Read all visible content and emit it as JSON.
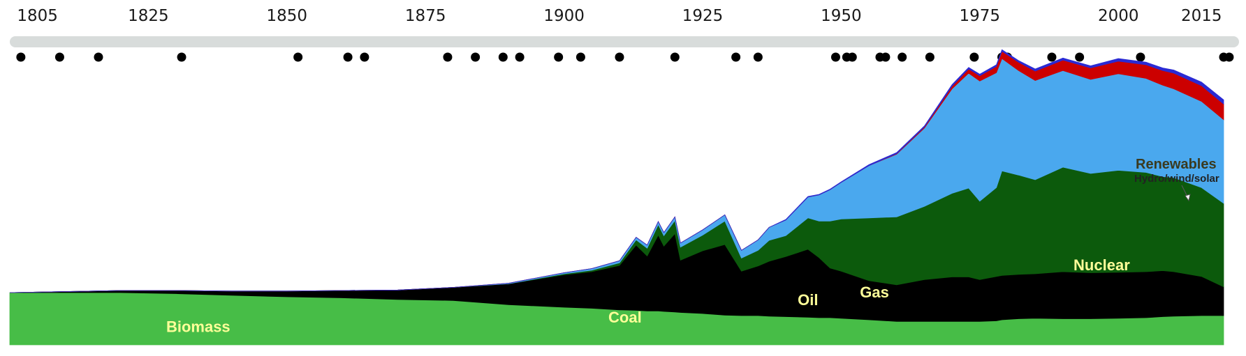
{
  "chart_data": {
    "type": "area",
    "stacked": true,
    "title": "",
    "xlabel": "",
    "ylabel": "",
    "xlim": [
      1800,
      2019
    ],
    "x_ticks": [
      1805,
      1825,
      1850,
      1875,
      1900,
      1925,
      1950,
      1975,
      2000,
      2015
    ],
    "grid": false,
    "legend": "inline",
    "timeline_events": [
      1802,
      1809,
      1816,
      1831,
      1852,
      1861,
      1864,
      1879,
      1884,
      1889,
      1892,
      1899,
      1903,
      1910,
      1920,
      1931,
      1935,
      1949,
      1951,
      1952,
      1957,
      1958,
      1961,
      1966,
      1974,
      1979,
      1980,
      1988,
      1993,
      2004,
      2019,
      2020
    ],
    "x": [
      1800,
      1810,
      1820,
      1830,
      1840,
      1850,
      1860,
      1870,
      1880,
      1890,
      1900,
      1905,
      1910,
      1913,
      1915,
      1917,
      1918,
      1920,
      1921,
      1925,
      1929,
      1932,
      1935,
      1937,
      1940,
      1944,
      1946,
      1948,
      1950,
      1955,
      1960,
      1965,
      1970,
      1973,
      1975,
      1978,
      1979,
      1982,
      1985,
      1990,
      1995,
      2000,
      2005,
      2008,
      2010,
      2015,
      2019
    ],
    "series": [
      {
        "name": "Biomass",
        "color": "#47bd47",
        "label_color": "#ffff99",
        "label_at": [
          1834,
          0.49
        ],
        "values": [
          100,
          100,
          100,
          98,
          95,
          92,
          90,
          87,
          85,
          77,
          72,
          70,
          67,
          66,
          65,
          65,
          64,
          63,
          62,
          60,
          57,
          56,
          56,
          55,
          54,
          53,
          52,
          52,
          51,
          48,
          45,
          45,
          45,
          45,
          45,
          46,
          48,
          50,
          51,
          50,
          50,
          51,
          52,
          54,
          55,
          56,
          56
        ]
      },
      {
        "name": "Coal",
        "color": "#000000",
        "label_color": "#ffff99",
        "label_at": [
          1911,
          0.86
        ],
        "values": [
          0,
          2,
          4,
          6,
          8,
          11,
          14,
          18,
          25,
          40,
          62,
          70,
          85,
          125,
          105,
          145,
          125,
          150,
          100,
          120,
          135,
          85,
          95,
          105,
          115,
          130,
          115,
          95,
          90,
          75,
          70,
          80,
          85,
          85,
          80,
          85,
          85,
          85,
          85,
          90,
          88,
          88,
          88,
          88,
          85,
          75,
          55
        ]
      },
      {
        "name": "Oil",
        "color": "#0c5a0c",
        "label_color": "#ffff99",
        "label_at": [
          1944,
          1.52
        ],
        "values": [
          0,
          0,
          0,
          0,
          0,
          0,
          0,
          0,
          0,
          0,
          2,
          3,
          5,
          10,
          15,
          20,
          20,
          25,
          25,
          30,
          45,
          25,
          30,
          40,
          40,
          60,
          70,
          90,
          100,
          120,
          130,
          140,
          160,
          170,
          150,
          170,
          200,
          190,
          180,
          200,
          190,
          195,
          190,
          180,
          180,
          170,
          160
        ]
      },
      {
        "name": "Gas",
        "color": "#4aa8ee",
        "label_color": "#ffff99",
        "label_at": [
          1956,
          1.82
        ],
        "values": [
          0,
          0,
          0,
          0,
          0,
          0,
          0,
          0,
          0,
          1,
          2,
          3,
          4,
          5,
          6,
          6,
          6,
          7,
          8,
          10,
          12,
          15,
          20,
          25,
          30,
          40,
          50,
          60,
          70,
          100,
          120,
          150,
          200,
          220,
          230,
          220,
          215,
          200,
          190,
          185,
          180,
          185,
          180,
          175,
          170,
          165,
          160
        ]
      },
      {
        "name": "Nuclear",
        "color": "#cc0000",
        "label_color": "#ffff99",
        "label_at": [
          1997,
          2.85
        ],
        "values": [
          0,
          0,
          0,
          0,
          0,
          0,
          0,
          0,
          0,
          0,
          0,
          0,
          0,
          0,
          0,
          0,
          0,
          0,
          0,
          0,
          0,
          0,
          0,
          0,
          0,
          0,
          0,
          0,
          0,
          0,
          1,
          2,
          5,
          8,
          10,
          12,
          14,
          16,
          18,
          20,
          22,
          24,
          26,
          28,
          30,
          30,
          30
        ]
      },
      {
        "name": "Renewables",
        "color": "#2a2ad4",
        "label_color": "#3a3a1f",
        "label_at": [
          2009,
          3.2
        ],
        "values": [
          0,
          0,
          0,
          0,
          0,
          0,
          0,
          0,
          0,
          0,
          0,
          0,
          0,
          0,
          0,
          0,
          0,
          0,
          0,
          0,
          0,
          0,
          0,
          0,
          1,
          1,
          1,
          1,
          1,
          2,
          2,
          2,
          3,
          3,
          3,
          3,
          3,
          3,
          4,
          4,
          4,
          5,
          5,
          5,
          6,
          7,
          8
        ]
      }
    ],
    "annotations": [
      {
        "title": "Renewables",
        "subtitle": "Hydro/wind/solar"
      }
    ]
  }
}
